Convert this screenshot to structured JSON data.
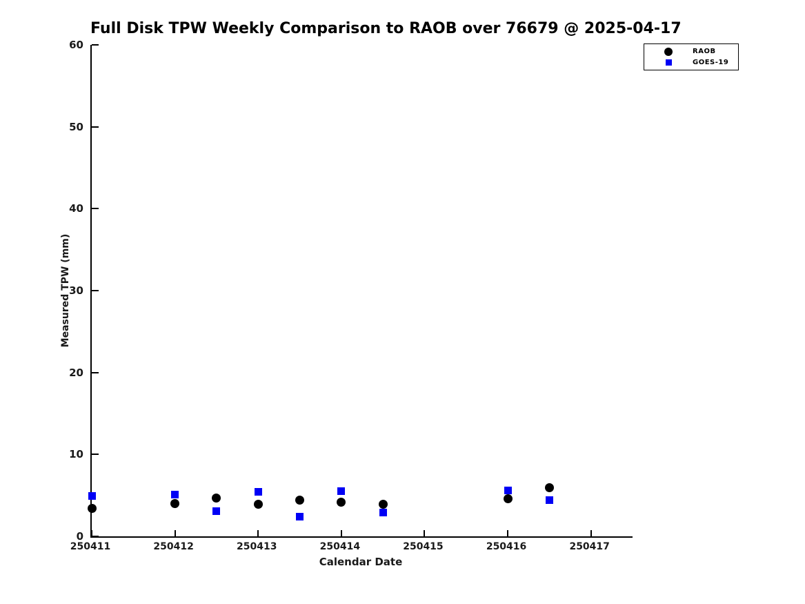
{
  "chart_data": {
    "type": "scatter",
    "title": "Full Disk TPW Weekly Comparison to RAOB over 76679 @ 2025-04-17",
    "xlabel": "Calendar Date",
    "ylabel": "Measured TPW (mm)",
    "xlim": [
      250411,
      250417.5
    ],
    "ylim": [
      0,
      60
    ],
    "x_ticks": [
      250411,
      250412,
      250413,
      250414,
      250415,
      250416,
      250417
    ],
    "y_ticks": [
      0,
      10,
      20,
      30,
      40,
      50,
      60
    ],
    "grid": false,
    "legend_position": "top-right",
    "series": [
      {
        "name": "RAOB",
        "marker": "circle",
        "color": "#000000",
        "marker_size": 13,
        "x": [
          250411,
          250412,
          250412.5,
          250413,
          250413.5,
          250414,
          250414.5,
          250416,
          250416.5
        ],
        "y": [
          3.4,
          4.0,
          4.7,
          3.9,
          4.4,
          4.2,
          3.9,
          4.6,
          5.9
        ]
      },
      {
        "name": "GOES-19",
        "marker": "square",
        "color": "#0000f5",
        "marker_size": 11,
        "x": [
          250411,
          250412,
          250412.5,
          250413,
          250413.5,
          250414,
          250414.5,
          250416,
          250416.5
        ],
        "y": [
          4.9,
          5.1,
          3.1,
          5.4,
          2.4,
          5.5,
          2.9,
          5.6,
          4.4
        ]
      }
    ]
  }
}
